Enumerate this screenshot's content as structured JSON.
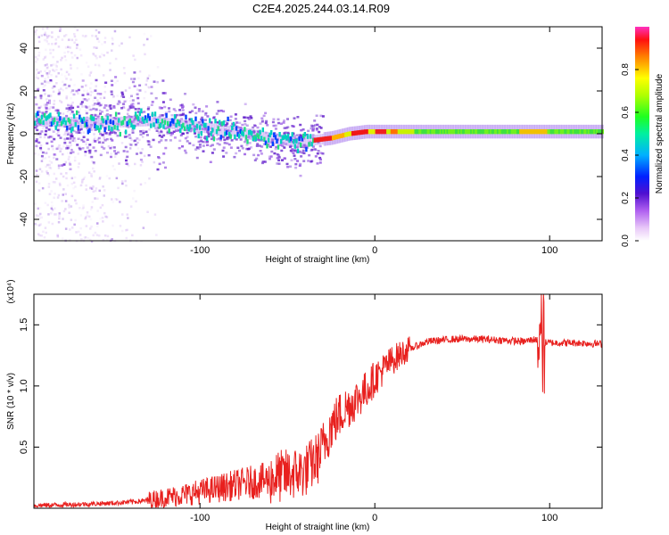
{
  "title": "C2E4.2025.244.03.14.R09",
  "chart_data": [
    {
      "type": "heatmap",
      "name": "spectrogram",
      "xlabel": "Height of straight line (km)",
      "ylabel": "Frequency (Hz)",
      "xlim": [
        -195,
        130
      ],
      "ylim": [
        -50,
        50
      ],
      "xticks": [
        -100,
        0,
        100
      ],
      "xtick_labels": [
        "-100",
        "0",
        "100"
      ],
      "yticks": [
        -40,
        -20,
        0,
        20,
        40
      ],
      "ytick_labels": [
        "-40",
        "-20",
        "0",
        "20",
        "40"
      ],
      "colorbar": {
        "label": "Normalized spectral amplitude",
        "range": [
          0,
          1
        ],
        "ticks": [
          0.0,
          0.2,
          0.4,
          0.6,
          0.8
        ],
        "tick_labels": [
          "0.0",
          "0.2",
          "0.4",
          "0.6",
          "0.8"
        ]
      },
      "ridge": {
        "x": [
          -195,
          -160,
          -130,
          -100,
          -80,
          -60,
          -45,
          -35,
          -25,
          -15,
          -5,
          0,
          5,
          15,
          30,
          60,
          90,
          110,
          130
        ],
        "y": [
          6,
          5,
          6,
          3,
          1,
          -2,
          -4,
          -3,
          -2,
          0,
          1,
          1,
          1,
          1,
          1,
          1,
          1,
          1,
          1
        ]
      }
    },
    {
      "type": "line",
      "name": "snr",
      "xlabel": "Height of straight line (km)",
      "ylabel": "SNR (10 * v/v)",
      "y_multiplier": "(x10⁴)",
      "xlim": [
        -195,
        130
      ],
      "ylim": [
        0,
        1.75
      ],
      "xticks": [
        -100,
        0,
        100
      ],
      "xtick_labels": [
        "-100",
        "0",
        "100"
      ],
      "yticks": [
        0.5,
        1.0,
        1.5
      ],
      "ytick_labels": [
        "0.5",
        "1.0",
        "1.5"
      ],
      "series": [
        {
          "name": "SNR",
          "color": "#e8201e",
          "x": [
            -195,
            -170,
            -150,
            -130,
            -110,
            -90,
            -75,
            -60,
            -50,
            -40,
            -32,
            -25,
            -18,
            -10,
            -5,
            0,
            10,
            20,
            30,
            45,
            60,
            75,
            85,
            92,
            95,
            100,
            115,
            130
          ],
          "y": [
            0.02,
            0.03,
            0.04,
            0.06,
            0.1,
            0.15,
            0.19,
            0.22,
            0.25,
            0.28,
            0.4,
            0.65,
            0.78,
            0.88,
            0.95,
            1.05,
            1.2,
            1.3,
            1.36,
            1.38,
            1.38,
            1.37,
            1.36,
            1.38,
            1.35,
            1.35,
            1.35,
            1.34
          ]
        }
      ]
    }
  ]
}
